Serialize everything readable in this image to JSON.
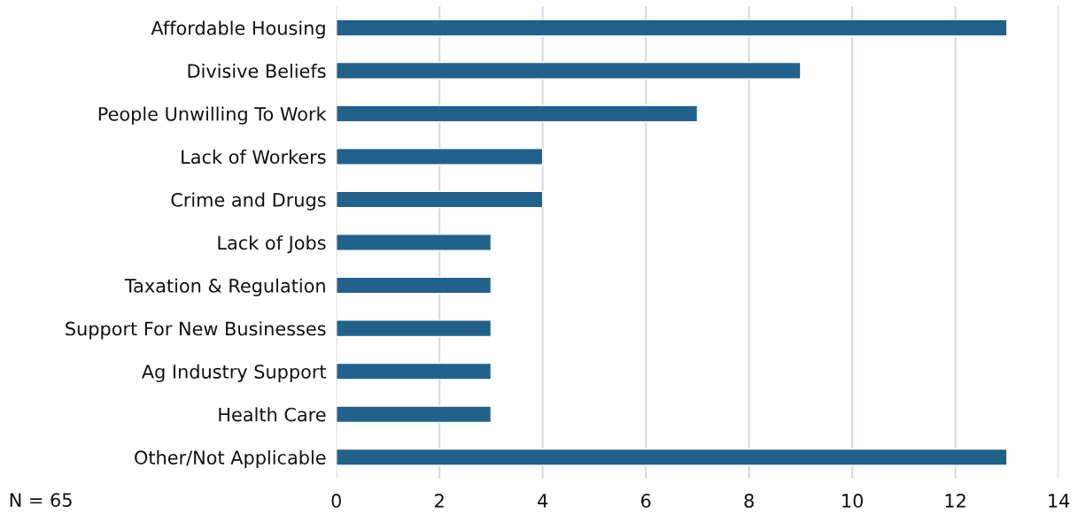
{
  "chart_data": {
    "type": "bar",
    "orientation": "horizontal",
    "categories": [
      "Affordable Housing",
      "Divisive Beliefs",
      "People Unwilling To Work",
      "Lack of Workers",
      "Crime and Drugs",
      "Lack of Jobs",
      "Taxation & Regulation",
      "Support For New Businesses",
      "Ag Industry Support",
      "Health Care",
      "Other/Not Applicable"
    ],
    "values": [
      13,
      9,
      7,
      4,
      4,
      3,
      3,
      3,
      3,
      3,
      13
    ],
    "color": "#22618a",
    "xlim": [
      0,
      14
    ],
    "xticks": [
      0,
      2,
      4,
      6,
      8,
      10,
      12,
      14
    ],
    "grid": "x",
    "annotations": [
      "N = 65"
    ]
  }
}
